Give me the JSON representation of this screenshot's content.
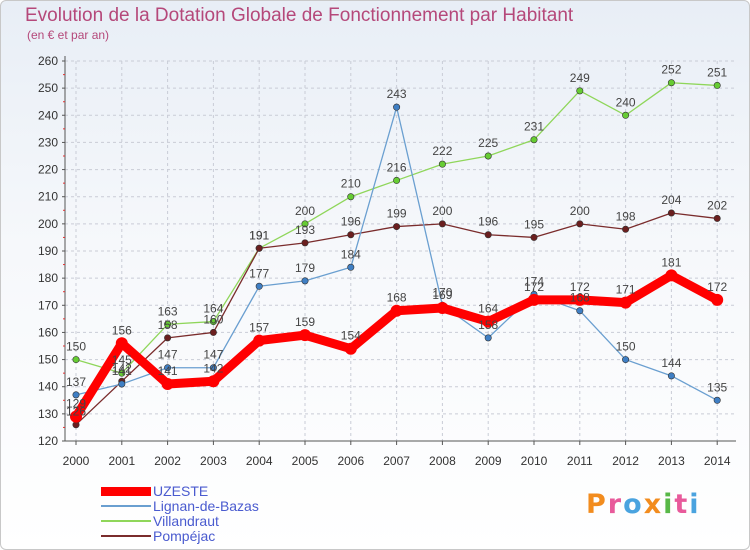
{
  "title": "Evolution de la Dotation Globale de Fonctionnement par Habitant",
  "subtitle": "(en € et par an)",
  "logo": {
    "text": "Proxiti",
    "colors": [
      "#f28c1e",
      "#e85a9b",
      "#4aa3df",
      "#f28c1e",
      "#58b847",
      "#e85a9b",
      "#4aa3df"
    ]
  },
  "chart_data": {
    "type": "line",
    "title": "Evolution de la Dotation Globale de Fonctionnement par Habitant",
    "ylabel": "(en € et par an)",
    "x": [
      "2000",
      "2001",
      "2002",
      "2003",
      "2004",
      "2005",
      "2006",
      "2007",
      "2008",
      "2009",
      "2010",
      "2011",
      "2012",
      "2013",
      "2014"
    ],
    "ylim": [
      120,
      260
    ],
    "yticks": [
      "120",
      "130",
      "140",
      "150",
      "160",
      "170",
      "180",
      "190",
      "200",
      "210",
      "220",
      "230",
      "240",
      "250",
      "260"
    ],
    "series": [
      {
        "name": "Villandraut",
        "color": "#8fd65a",
        "marker": "#66cc33",
        "values": [
          150,
          145,
          163,
          164,
          191,
          200,
          210,
          216,
          222,
          225,
          231,
          249,
          240,
          252,
          251
        ],
        "labels": [
          "150",
          "145",
          "163",
          "164",
          "191",
          "200",
          "210",
          "216",
          "222",
          "225",
          "231",
          "249",
          "240",
          "252",
          "251"
        ]
      },
      {
        "name": "Pompéjac",
        "color": "#7a2c2c",
        "marker": "#6b1f1f",
        "values": [
          126,
          142,
          158,
          160,
          191,
          193,
          196,
          199,
          200,
          196,
          195,
          200,
          198,
          204,
          202
        ],
        "labels": [
          "126",
          "142",
          "158",
          "160",
          "191",
          "193",
          "196",
          "199",
          "200",
          "196",
          "195",
          "200",
          "198",
          "204",
          "202"
        ]
      },
      {
        "name": "Lignan-de-Bazas",
        "color": "#6a9fd0",
        "marker": "#3f7fc4",
        "values": [
          137,
          141,
          147,
          147,
          177,
          179,
          184,
          243,
          170,
          158,
          174,
          168,
          150,
          144,
          135
        ],
        "labels": [
          "137",
          "141",
          "147",
          "147",
          "177",
          "179",
          "184",
          "243",
          "170",
          "158",
          "174",
          "168",
          "150",
          "144",
          "135"
        ]
      },
      {
        "name": "UZESTE",
        "color": "#ff0000",
        "marker": "#ff0000",
        "values": [
          129,
          156,
          141,
          142,
          157,
          159,
          154,
          168,
          169,
          164,
          172,
          172,
          171,
          181,
          172
        ],
        "labels": [
          "129",
          "156",
          "141",
          "142",
          "157",
          "159",
          "154",
          "168",
          "169",
          "164",
          "172",
          "172",
          "171",
          "181",
          "172"
        ]
      }
    ],
    "legend": [
      "UZESTE",
      "Lignan-de-Bazas",
      "Villandraut",
      "Pompéjac"
    ]
  }
}
